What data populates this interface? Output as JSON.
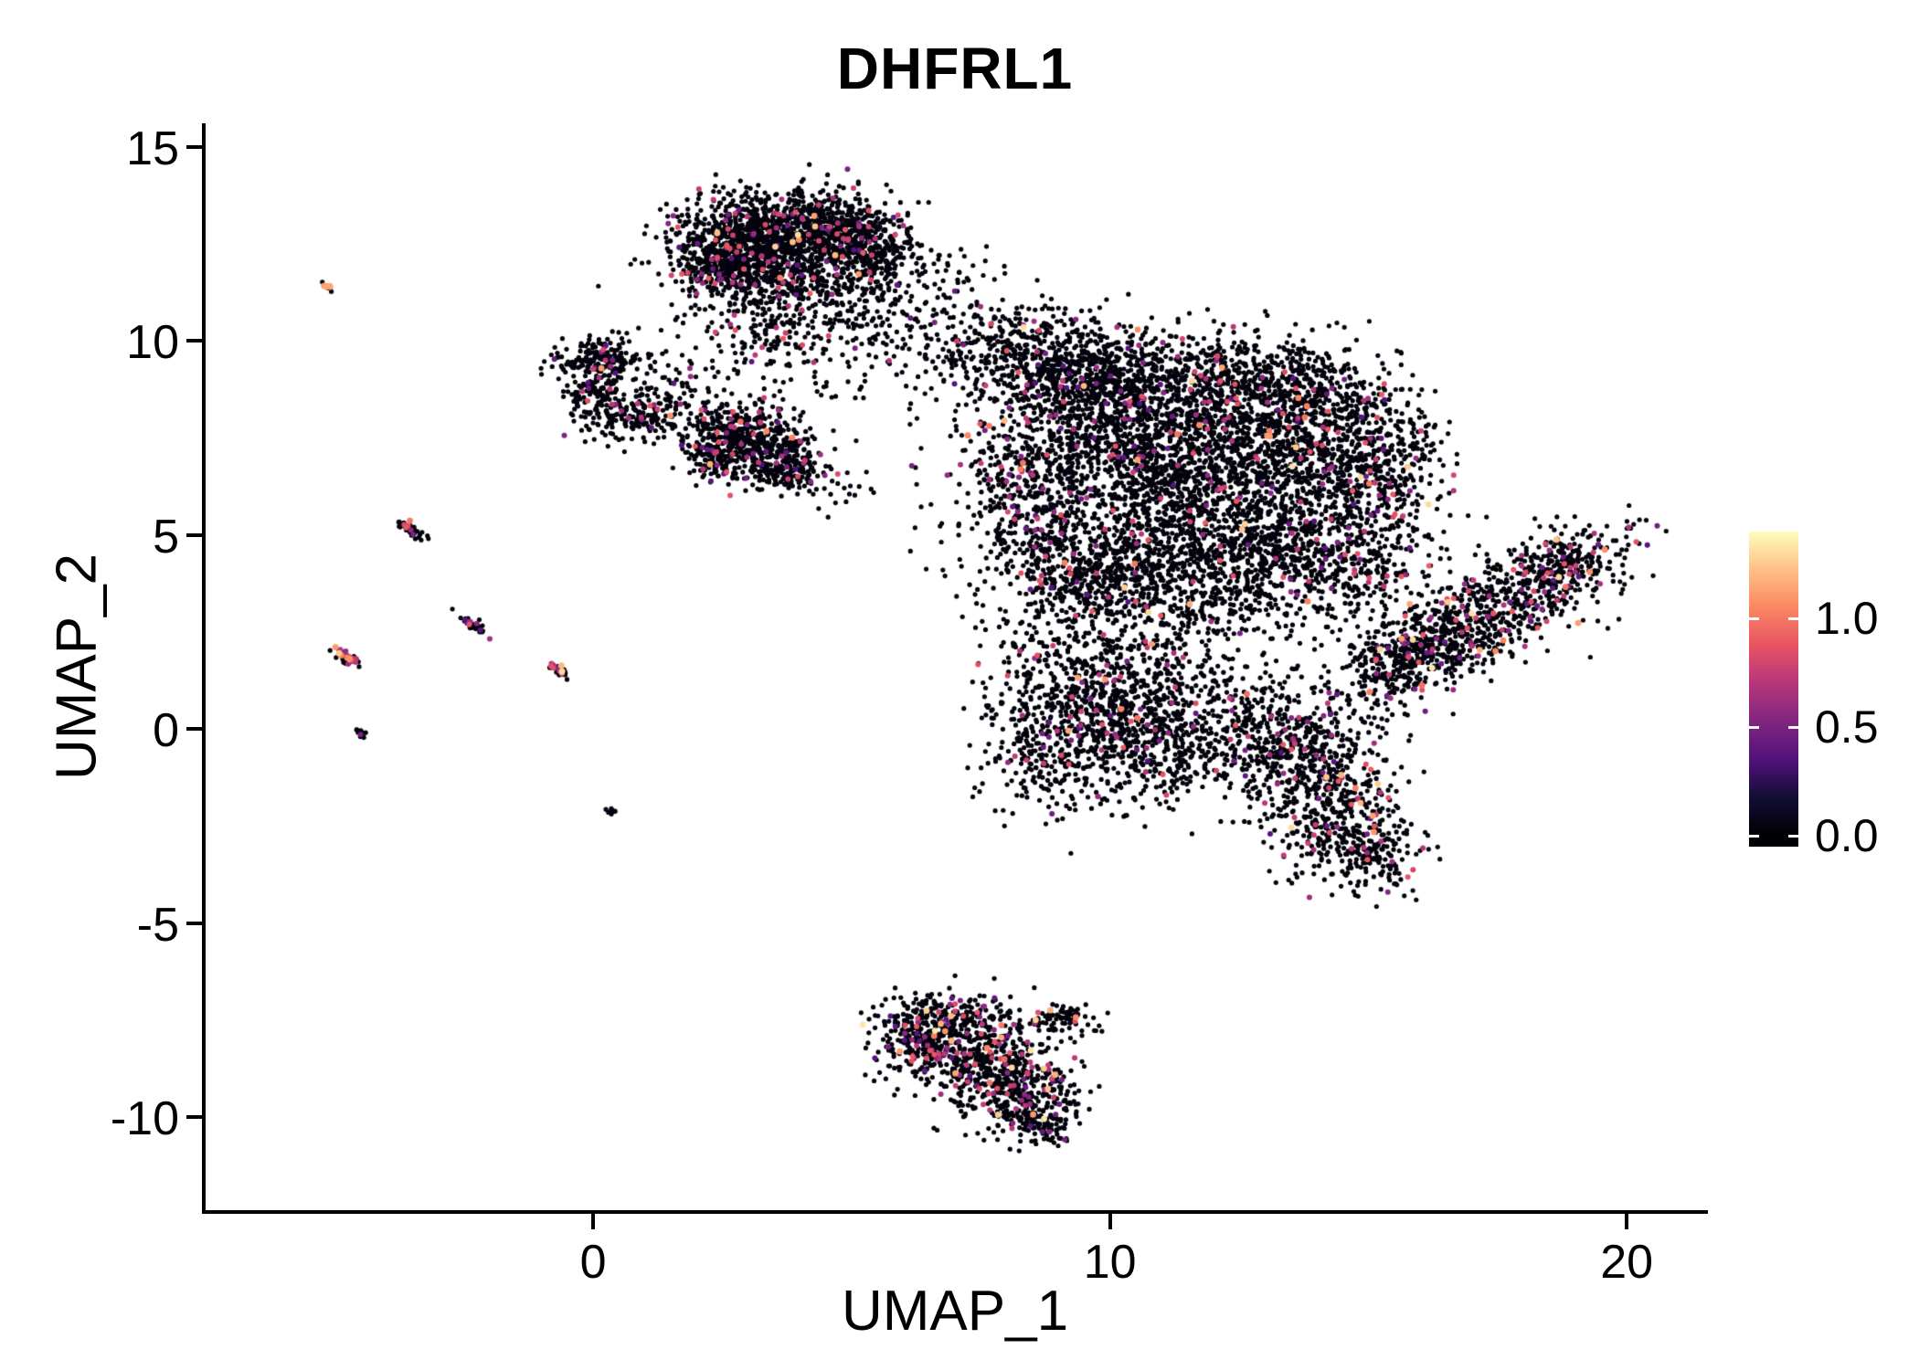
{
  "title": "DHFRL1",
  "axes": {
    "x": {
      "label": "UMAP_1",
      "range": [
        -7.5,
        21.5
      ],
      "ticks": [
        {
          "value": 0,
          "label": "0"
        },
        {
          "value": 10,
          "label": "10"
        },
        {
          "value": 20,
          "label": "20"
        }
      ]
    },
    "y": {
      "label": "UMAP_2",
      "range": [
        -12.4,
        15.6
      ],
      "ticks": [
        {
          "value": 15,
          "label": "15"
        },
        {
          "value": 10,
          "label": "10"
        },
        {
          "value": 5,
          "label": "5"
        },
        {
          "value": 0,
          "label": "0"
        },
        {
          "value": -5,
          "label": "-5"
        },
        {
          "value": -10,
          "label": "-10"
        }
      ]
    }
  },
  "legend": {
    "ticks": [
      {
        "value": 1.0,
        "label": "1.0"
      },
      {
        "value": 0.5,
        "label": "0.5"
      },
      {
        "value": 0.0,
        "label": "0.0"
      }
    ],
    "bar_range": [
      -0.05,
      1.4
    ]
  },
  "chart_data": {
    "type": "scatter",
    "title": "DHFRL1",
    "xlabel": "UMAP_1",
    "ylabel": "UMAP_2",
    "xlim": [
      -7.5,
      21.5
    ],
    "ylim": [
      -12.4,
      15.6
    ],
    "legend_title": "",
    "grid": false,
    "legend_position": "right",
    "color_scale": {
      "name": "magma",
      "value_range": [
        0,
        1.4
      ],
      "stops": [
        [
          0.0,
          "#000004"
        ],
        [
          0.13,
          "#140E36"
        ],
        [
          0.25,
          "#51127C"
        ],
        [
          0.38,
          "#822681"
        ],
        [
          0.5,
          "#B63679"
        ],
        [
          0.62,
          "#E65164"
        ],
        [
          0.75,
          "#FB8861"
        ],
        [
          0.88,
          "#FEC287"
        ],
        [
          1.0,
          "#FCFDBF"
        ]
      ]
    },
    "point_style": {
      "radius_zero": 2.6,
      "radius_mid": 3.0,
      "radius_high": 3.4
    },
    "seed": 42,
    "cluster_fields": [
      "cx",
      "cy",
      "sx",
      "sy",
      "n",
      "rot_deg",
      "frac_mid_expr",
      "frac_high_expr"
    ],
    "clusters": [
      [
        3.1,
        12.7,
        0.75,
        0.55,
        650,
        0,
        0.055,
        0.006
      ],
      [
        4.4,
        12.9,
        0.75,
        0.5,
        520,
        0,
        0.055,
        0.006
      ],
      [
        5.3,
        12.4,
        0.5,
        0.5,
        240,
        0,
        0.055,
        0.006
      ],
      [
        2.5,
        12.0,
        0.5,
        0.45,
        240,
        0,
        0.055,
        0.006
      ],
      [
        3.6,
        11.7,
        0.8,
        0.5,
        360,
        0,
        0.055,
        0.006
      ],
      [
        3.8,
        10.7,
        1.1,
        0.55,
        180,
        0,
        0.05,
        0.004
      ],
      [
        5.6,
        11.4,
        0.5,
        0.6,
        100,
        0,
        0.05,
        0.004
      ],
      [
        3.3,
        9.9,
        0.5,
        0.5,
        70,
        0,
        0.05,
        0.004
      ],
      [
        0.15,
        9.5,
        0.45,
        0.3,
        180,
        0,
        0.06,
        0.004
      ],
      [
        0.1,
        8.6,
        0.35,
        0.45,
        160,
        0,
        0.06,
        0.004
      ],
      [
        0.8,
        8.0,
        0.45,
        0.3,
        130,
        0,
        0.06,
        0.004
      ],
      [
        1.35,
        8.4,
        0.3,
        0.35,
        50,
        0,
        0.06,
        0.004
      ],
      [
        2.7,
        7.6,
        0.5,
        0.45,
        340,
        0,
        0.07,
        0.006
      ],
      [
        3.5,
        7.0,
        0.45,
        0.4,
        250,
        0,
        0.07,
        0.006
      ],
      [
        2.4,
        6.9,
        0.3,
        0.3,
        100,
        0,
        0.07,
        0.006
      ],
      [
        3.95,
        6.6,
        0.3,
        0.25,
        70,
        0,
        0.07,
        0.006
      ],
      [
        1.7,
        8.9,
        0.4,
        0.5,
        35,
        0,
        0.05,
        0
      ],
      [
        4.7,
        9.2,
        0.8,
        0.7,
        50,
        0,
        0.04,
        0
      ],
      [
        6.3,
        10.3,
        0.9,
        0.8,
        80,
        0,
        0.04,
        0
      ],
      [
        6.9,
        11.7,
        0.5,
        0.4,
        30,
        0,
        0.04,
        0
      ],
      [
        4.8,
        6.2,
        0.35,
        0.3,
        18,
        0,
        0.04,
        0
      ],
      [
        8.5,
        9.5,
        0.9,
        0.7,
        560,
        0,
        0.05,
        0.005
      ],
      [
        9.8,
        9.0,
        0.8,
        0.6,
        400,
        0,
        0.042,
        0.005
      ],
      [
        12.1,
        8.9,
        1.2,
        0.7,
        640,
        0,
        0.042,
        0.005
      ],
      [
        13.9,
        8.3,
        0.8,
        0.7,
        400,
        0,
        0.042,
        0.005
      ],
      [
        10.3,
        7.2,
        1.2,
        0.9,
        720,
        0,
        0.042,
        0.005
      ],
      [
        12.2,
        6.8,
        1.1,
        0.9,
        720,
        0,
        0.042,
        0.005
      ],
      [
        14.2,
        6.3,
        0.8,
        0.9,
        400,
        0,
        0.042,
        0.005
      ],
      [
        15.4,
        6.9,
        0.55,
        1.1,
        320,
        0,
        0.07,
        0.008
      ],
      [
        8.4,
        6.3,
        0.8,
        1.0,
        400,
        0,
        0.075,
        0.006
      ],
      [
        11.0,
        4.7,
        1.4,
        0.9,
        720,
        0,
        0.042,
        0.005
      ],
      [
        9.4,
        3.9,
        0.9,
        0.8,
        400,
        0,
        0.05,
        0.005
      ],
      [
        13.0,
        4.4,
        0.9,
        0.8,
        440,
        0,
        0.042,
        0.005
      ],
      [
        11.7,
        3.0,
        1.6,
        0.7,
        240,
        0,
        0.04,
        0.004
      ],
      [
        14.9,
        4.2,
        0.6,
        0.7,
        200,
        0,
        0.07,
        0.008
      ],
      [
        10.1,
        0.9,
        1.0,
        1.0,
        560,
        0,
        0.06,
        0.006
      ],
      [
        8.9,
        -0.3,
        0.7,
        0.9,
        320,
        0,
        0.06,
        0.006
      ],
      [
        10.9,
        -0.6,
        0.8,
        0.7,
        320,
        0,
        0.06,
        0.006
      ],
      [
        12.2,
        0.6,
        0.9,
        0.8,
        200,
        0,
        0.05,
        0.005
      ],
      [
        13.6,
        -0.6,
        0.9,
        0.8,
        440,
        0,
        0.06,
        0.008
      ],
      [
        14.4,
        -2.2,
        0.65,
        0.9,
        360,
        0,
        0.07,
        0.012
      ],
      [
        15.1,
        -3.2,
        0.45,
        0.5,
        140,
        0,
        0.07,
        0.012
      ],
      [
        15.9,
        1.8,
        0.7,
        0.8,
        80,
        0,
        0.05,
        0.005
      ],
      [
        8.6,
        1.8,
        0.6,
        0.6,
        50,
        0,
        0.05,
        0.005
      ],
      [
        17.2,
        2.9,
        1.5,
        0.55,
        800,
        38,
        0.09,
        0.012
      ],
      [
        18.9,
        4.2,
        0.5,
        0.4,
        160,
        38,
        0.09,
        0.012
      ],
      [
        15.6,
        1.9,
        0.5,
        0.4,
        160,
        38,
        0.08,
        0.01
      ],
      [
        6.8,
        -7.5,
        0.7,
        0.35,
        220,
        0,
        0.1,
        0.018
      ],
      [
        7.3,
        -8.4,
        0.8,
        0.6,
        400,
        0,
        0.1,
        0.018
      ],
      [
        8.2,
        -9.3,
        0.6,
        0.55,
        300,
        0,
        0.1,
        0.018
      ],
      [
        8.6,
        -10.0,
        0.35,
        0.35,
        130,
        0,
        0.08,
        0.015
      ],
      [
        6.3,
        -8.2,
        0.35,
        0.4,
        110,
        0,
        0.1,
        0.02
      ],
      [
        9.0,
        -7.5,
        0.45,
        0.2,
        80,
        15,
        0.08,
        0.01
      ],
      [
        -5.15,
        11.4,
        0.08,
        0.04,
        12,
        -42,
        0.2,
        0.25
      ],
      [
        -3.5,
        5.1,
        0.17,
        0.06,
        48,
        -42,
        0.1,
        0.02
      ],
      [
        -2.3,
        2.65,
        0.15,
        0.05,
        40,
        -42,
        0.1,
        0
      ],
      [
        -4.75,
        1.8,
        0.16,
        0.06,
        40,
        -42,
        0.25,
        0.18
      ],
      [
        -0.65,
        1.5,
        0.14,
        0.05,
        35,
        -42,
        0.3,
        0.05
      ],
      [
        -4.5,
        -0.1,
        0.1,
        0.05,
        14,
        -42,
        0.05,
        0
      ],
      [
        0.35,
        -2.1,
        0.06,
        0.04,
        8,
        0,
        0,
        0
      ]
    ]
  }
}
